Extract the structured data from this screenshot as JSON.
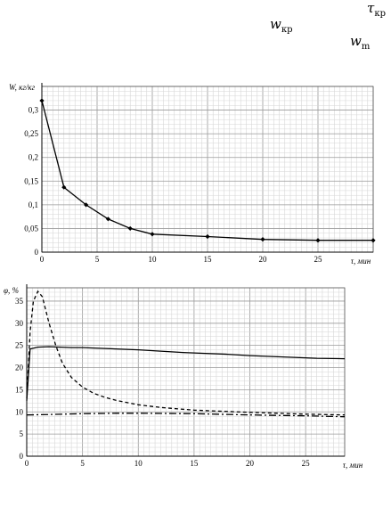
{
  "symbols": {
    "tau_kr": {
      "main": "τ",
      "sub": "кр"
    },
    "w_kr": {
      "main": "w",
      "sub": "кр"
    },
    "w_m": {
      "main": "w",
      "sub": "m"
    }
  },
  "chart_data": [
    {
      "type": "line",
      "ylabel": "W, кг/кг",
      "xlabel": "τ, мин",
      "x_ticks": [
        0,
        5,
        10,
        15,
        20,
        25
      ],
      "y_ticks": [
        "0",
        "0,05",
        "0,1",
        "0,15",
        "0,2",
        "0,25",
        "0,3"
      ],
      "xlim": [
        0,
        30
      ],
      "ylim": [
        0,
        0.35
      ],
      "grid": true,
      "series": [
        {
          "style": "solid-markers",
          "x": [
            0,
            2,
            4,
            6,
            8,
            10,
            15,
            20,
            25,
            30
          ],
          "y": [
            0.32,
            0.137,
            0.1,
            0.07,
            0.05,
            0.038,
            0.033,
            0.027,
            0.025,
            0.025
          ]
        }
      ]
    },
    {
      "type": "line",
      "ylabel": "φ, %",
      "xlabel": "τ, мин",
      "x_ticks": [
        0,
        5,
        10,
        15,
        20,
        25
      ],
      "y_ticks": [
        0,
        5,
        10,
        15,
        20,
        25,
        30,
        35
      ],
      "xlim": [
        0,
        28.5
      ],
      "ylim": [
        0,
        38
      ],
      "grid": true,
      "series": [
        {
          "style": "solid",
          "x": [
            0,
            0.3,
            1,
            2,
            3,
            4,
            5,
            6,
            7,
            8,
            9,
            10,
            12,
            14,
            16,
            18,
            20,
            22,
            24,
            26,
            28.5
          ],
          "y": [
            12.5,
            24.2,
            24.6,
            24.7,
            24.6,
            24.5,
            24.5,
            24.4,
            24.3,
            24.2,
            24.1,
            24.0,
            23.7,
            23.4,
            23.2,
            23.0,
            22.7,
            22.5,
            22.3,
            22.1,
            22.0
          ]
        },
        {
          "style": "dashed",
          "x": [
            0,
            0.3,
            0.6,
            1.0,
            1.4,
            2.0,
            2.6,
            3.2,
            4,
            5,
            6,
            7,
            8,
            10,
            12,
            15,
            20,
            25,
            28.5
          ],
          "y": [
            13,
            28,
            35,
            37.2,
            36,
            30,
            25,
            21,
            17.8,
            15.6,
            14.2,
            13.3,
            12.6,
            11.6,
            11.0,
            10.4,
            9.9,
            9.5,
            9.3
          ]
        },
        {
          "style": "dash-dot",
          "x": [
            0,
            2,
            5,
            8,
            10,
            15,
            20,
            25,
            28.5
          ],
          "y": [
            9.3,
            9.4,
            9.6,
            9.7,
            9.7,
            9.6,
            9.3,
            9.1,
            8.9
          ]
        }
      ]
    }
  ]
}
